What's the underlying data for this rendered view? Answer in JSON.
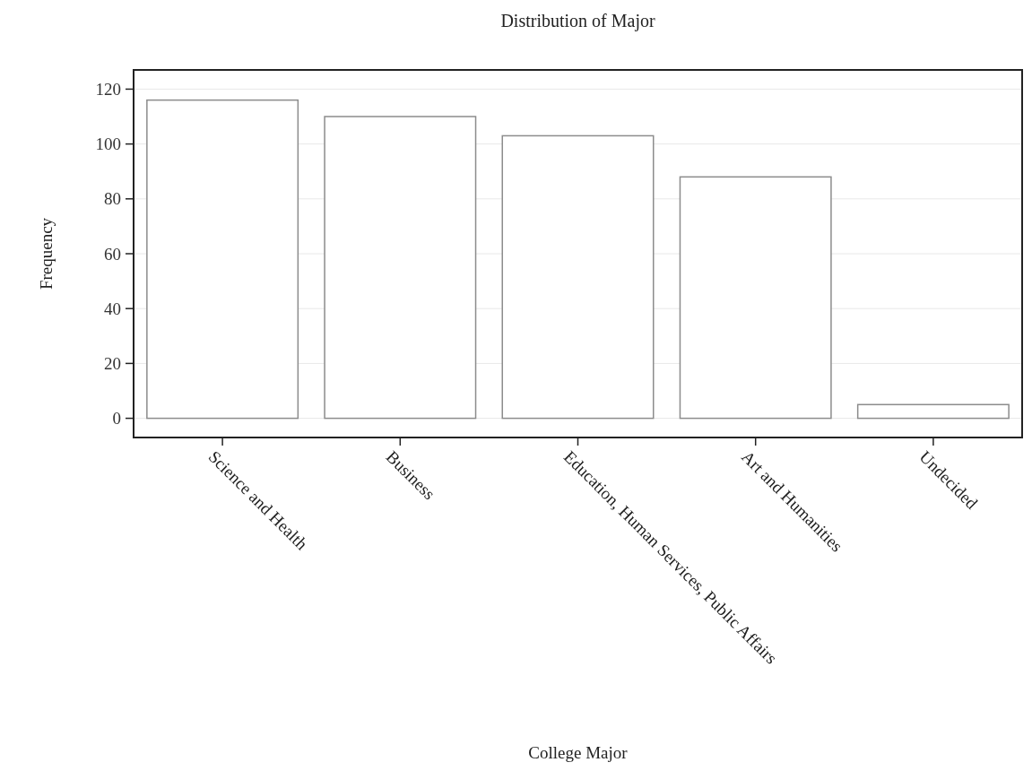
{
  "chart_data": {
    "type": "bar",
    "title": "Distribution of Major",
    "xlabel": "College Major",
    "ylabel": "Frequency",
    "categories": [
      "Science and Health",
      "Business",
      "Education, Human Services, Public Affairs",
      "Art and Humanities",
      "Undecided"
    ],
    "values": [
      116,
      110,
      103,
      88,
      5
    ],
    "color": "#8c8c8c",
    "ylim": [
      -7,
      127
    ],
    "yticks": [
      0,
      20,
      40,
      60,
      80,
      100,
      120
    ],
    "grid": "y"
  }
}
